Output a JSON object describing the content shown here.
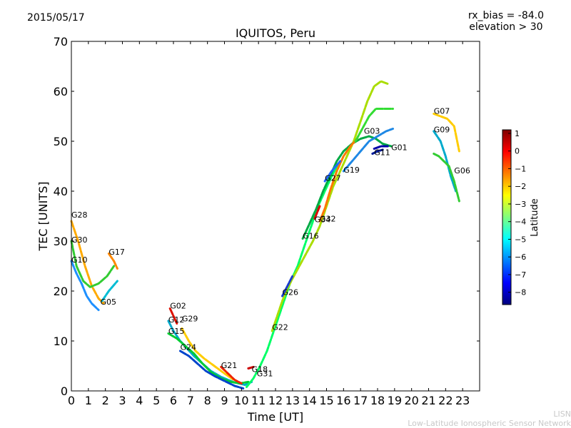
{
  "header": {
    "date": "2015/05/17",
    "title": "IQUITOS, Peru",
    "rx_bias": "rx_bias = -84.0",
    "elevation": "elevation > 30"
  },
  "footer": {
    "line1": "LISN",
    "line2": "Low-Latitude Ionospheric Sensor Network"
  },
  "chart_data": {
    "type": "scatter",
    "xlabel": "Time [UT]",
    "ylabel": "TEC [UNITS]",
    "xlim": [
      0,
      24
    ],
    "ylim": [
      0,
      70
    ],
    "xticks": [
      "0",
      "1",
      "2",
      "3",
      "4",
      "5",
      "6",
      "7",
      "8",
      "9",
      "10",
      "11",
      "12",
      "13",
      "14",
      "15",
      "16",
      "17",
      "18",
      "19",
      "20",
      "21",
      "22",
      "23"
    ],
    "yticks": [
      "0",
      "10",
      "20",
      "30",
      "40",
      "50",
      "60",
      "70"
    ],
    "grid": false,
    "colorbar": {
      "label": "Latitude",
      "range": [
        -8.7,
        1.2
      ],
      "ticks": [
        "1",
        "0",
        "−1",
        "−2",
        "−3",
        "−4",
        "−5",
        "−6",
        "−7",
        "−8"
      ],
      "colormap": [
        "#00007f",
        "#0000ff",
        "#007fff",
        "#00ffff",
        "#7fff7f",
        "#ffff00",
        "#ff7f00",
        "#ff0000",
        "#7f0000"
      ]
    },
    "series": [
      {
        "name": "G28",
        "label_at": [
          0.0,
          34.7
        ],
        "color": "#ffaa00",
        "points": [
          [
            0.0,
            34
          ],
          [
            0.4,
            30
          ],
          [
            0.8,
            25
          ],
          [
            1.2,
            21
          ],
          [
            1.6,
            18.5
          ],
          [
            1.9,
            17.5
          ]
        ]
      },
      {
        "name": "G30",
        "label_at": [
          0.0,
          29.7
        ],
        "color": "#33cc33",
        "points": [
          [
            0.0,
            30
          ],
          [
            0.3,
            25
          ],
          [
            0.7,
            22
          ],
          [
            1.1,
            20.8
          ],
          [
            1.6,
            21.5
          ],
          [
            2.1,
            23
          ],
          [
            2.5,
            25
          ]
        ]
      },
      {
        "name": "G10",
        "label_at": [
          0.0,
          25.7
        ],
        "color": "#1e90ff",
        "points": [
          [
            0.0,
            26
          ],
          [
            0.3,
            23.5
          ],
          [
            0.6,
            21.5
          ],
          [
            0.9,
            19
          ],
          [
            1.2,
            17.5
          ],
          [
            1.6,
            16.2
          ]
        ]
      },
      {
        "name": "G17",
        "label_at": [
          2.2,
          27.3
        ],
        "color": "#ff8800",
        "points": [
          [
            2.2,
            27.5
          ],
          [
            2.5,
            26
          ],
          [
            2.7,
            24.5
          ]
        ]
      },
      {
        "name": "G05",
        "label_at": [
          1.7,
          17.3
        ],
        "color": "#00bcd4",
        "points": [
          [
            1.8,
            18
          ],
          [
            2.2,
            20
          ],
          [
            2.7,
            22
          ]
        ]
      },
      {
        "name": "G02",
        "label_at": [
          5.8,
          16.5
        ],
        "color": "#dd1100",
        "points": [
          [
            5.8,
            16.5
          ],
          [
            6.0,
            15
          ],
          [
            6.2,
            13.5
          ]
        ]
      },
      {
        "name": "G12",
        "label_at": [
          5.7,
          13.7
        ],
        "color": "#00aacc",
        "points": [
          [
            5.7,
            14
          ],
          [
            6.0,
            12
          ],
          [
            6.4,
            10
          ],
          [
            6.8,
            8.5
          ],
          [
            7.2,
            7
          ],
          [
            7.7,
            5.5
          ],
          [
            8.2,
            4
          ],
          [
            8.8,
            2.8
          ],
          [
            9.5,
            1.8
          ],
          [
            10.2,
            1.2
          ],
          [
            10.6,
            1.8
          ]
        ]
      },
      {
        "name": "G29",
        "label_at": [
          6.5,
          13.9
        ],
        "color": "#ffcc00",
        "points": [
          [
            6.5,
            12.5
          ],
          [
            6.9,
            10
          ],
          [
            7.3,
            8
          ],
          [
            7.8,
            6.5
          ],
          [
            8.4,
            5
          ],
          [
            9.0,
            3.5
          ],
          [
            9.5,
            2.3
          ]
        ]
      },
      {
        "name": "G15",
        "label_at": [
          5.7,
          11.4
        ],
        "color": "#00cc33",
        "points": [
          [
            5.7,
            11.5
          ],
          [
            6.2,
            10.5
          ],
          [
            6.7,
            9
          ],
          [
            7.2,
            7.5
          ],
          [
            7.7,
            5.5
          ],
          [
            8.2,
            3.8
          ],
          [
            8.8,
            2.5
          ],
          [
            9.4,
            1.8
          ],
          [
            9.9,
            1.5
          ],
          [
            10.4,
            1.8
          ]
        ]
      },
      {
        "name": "G24",
        "label_at": [
          6.4,
          8.2
        ],
        "color": "#0044cc",
        "points": [
          [
            6.4,
            8
          ],
          [
            6.9,
            7
          ],
          [
            7.4,
            5.5
          ],
          [
            7.9,
            4
          ],
          [
            8.4,
            3
          ],
          [
            9.0,
            2
          ],
          [
            9.6,
            1
          ],
          [
            10.1,
            0.5
          ]
        ]
      },
      {
        "name": "G21",
        "label_at": [
          8.8,
          4.6
        ],
        "color": "#ee2200",
        "points": [
          [
            8.8,
            4.8
          ],
          [
            9.2,
            3.5
          ],
          [
            9.6,
            2.2
          ],
          [
            10.0,
            1.5
          ]
        ]
      },
      {
        "name": "G18",
        "label_at": [
          10.6,
          3.8
        ],
        "color": "#cc0000",
        "points": [
          [
            10.4,
            4.5
          ],
          [
            10.7,
            4.8
          ]
        ]
      },
      {
        "name": "G31",
        "label_at": [
          10.9,
          2.9
        ],
        "color": "#00ff66",
        "points": [
          [
            10.3,
            0.8
          ],
          [
            10.7,
            2.5
          ],
          [
            11.1,
            5
          ],
          [
            11.5,
            8
          ],
          [
            11.8,
            11
          ],
          [
            12.1,
            14
          ],
          [
            12.5,
            18
          ],
          [
            12.9,
            22
          ],
          [
            13.3,
            25
          ],
          [
            13.7,
            29
          ],
          [
            14.1,
            33
          ],
          [
            14.5,
            37
          ],
          [
            14.9,
            40
          ],
          [
            15.3,
            43
          ],
          [
            15.7,
            45.5
          ]
        ]
      },
      {
        "name": "G22",
        "label_at": [
          11.8,
          12.2
        ],
        "color": "#aadd00",
        "points": [
          [
            11.8,
            12
          ],
          [
            12.1,
            15
          ],
          [
            12.4,
            18
          ],
          [
            12.7,
            20.5
          ],
          [
            13.0,
            22.5
          ],
          [
            13.4,
            25
          ],
          [
            13.8,
            27.5
          ],
          [
            14.2,
            30
          ],
          [
            14.6,
            33
          ],
          [
            15.0,
            37
          ],
          [
            15.4,
            41
          ],
          [
            15.8,
            44
          ],
          [
            16.2,
            47
          ],
          [
            16.6,
            50
          ],
          [
            17.0,
            54
          ],
          [
            17.4,
            58
          ],
          [
            17.8,
            61
          ],
          [
            18.2,
            62
          ],
          [
            18.6,
            61.5
          ]
        ]
      },
      {
        "name": "G26",
        "label_at": [
          12.4,
          19.2
        ],
        "color": "#1a3ccc",
        "points": [
          [
            12.4,
            19
          ],
          [
            12.7,
            21
          ],
          [
            13.0,
            23
          ]
        ]
      },
      {
        "name": "G16",
        "label_at": [
          13.6,
          30.5
        ],
        "color": "#00aa44",
        "points": [
          [
            13.6,
            30.5
          ],
          [
            14.0,
            33.5
          ],
          [
            14.4,
            36.5
          ],
          [
            14.8,
            40
          ],
          [
            15.2,
            43
          ],
          [
            15.6,
            46
          ],
          [
            16.0,
            48
          ],
          [
            16.5,
            49.5
          ],
          [
            17.0,
            50.5
          ],
          [
            17.5,
            51
          ],
          [
            17.9,
            50.5
          ],
          [
            18.3,
            49.5
          ],
          [
            18.8,
            49
          ]
        ]
      },
      {
        "name": "G32",
        "label_at": [
          14.6,
          33.9
        ],
        "color": "#ff7700",
        "points": [
          [
            14.6,
            34
          ],
          [
            14.9,
            36.5
          ],
          [
            15.2,
            40
          ],
          [
            15.6,
            44
          ],
          [
            16.0,
            47
          ],
          [
            16.4,
            49
          ],
          [
            16.8,
            50.5
          ]
        ]
      },
      {
        "name": "G34",
        "label_at": [
          14.3,
          33.8
        ],
        "color": "#dd0000",
        "points": [
          [
            14.3,
            34.5
          ],
          [
            14.6,
            37
          ]
        ]
      },
      {
        "name": "G27",
        "label_at": [
          14.9,
          42.1
        ],
        "color": "#2266ff",
        "points": [
          [
            14.9,
            42
          ],
          [
            15.3,
            44
          ],
          [
            15.8,
            46
          ]
        ]
      },
      {
        "name": "G19",
        "label_at": [
          16.0,
          43.7
        ],
        "color": "#1e88e5",
        "points": [
          [
            16.0,
            44
          ],
          [
            16.5,
            46
          ],
          [
            17.0,
            48
          ],
          [
            17.5,
            50
          ],
          [
            18.0,
            51
          ],
          [
            18.5,
            52
          ],
          [
            18.9,
            52.5
          ]
        ]
      },
      {
        "name": "G03",
        "label_at": [
          17.2,
          51.5
        ],
        "color": "#33dd33",
        "points": [
          [
            16.7,
            50
          ],
          [
            17.1,
            52.5
          ],
          [
            17.5,
            55
          ],
          [
            17.9,
            56.5
          ],
          [
            18.4,
            56.5
          ],
          [
            18.9,
            56.5
          ]
        ]
      },
      {
        "name": "G11",
        "label_at": [
          17.8,
          47.2
        ],
        "color": "#001a99",
        "points": [
          [
            17.7,
            47.5
          ],
          [
            18.0,
            48
          ],
          [
            18.3,
            48.3
          ]
        ]
      },
      {
        "name": "G01",
        "label_at": [
          18.8,
          48.2
        ],
        "color": "#0000aa",
        "points": [
          [
            17.8,
            48.5
          ],
          [
            18.2,
            49
          ],
          [
            18.6,
            49
          ]
        ]
      },
      {
        "name": "G07",
        "label_at": [
          21.3,
          55.5
        ],
        "color": "#ffcc00",
        "points": [
          [
            21.3,
            55.5
          ],
          [
            21.7,
            55
          ],
          [
            22.1,
            54.5
          ],
          [
            22.5,
            53
          ],
          [
            22.8,
            48
          ]
        ]
      },
      {
        "name": "G09",
        "label_at": [
          21.3,
          51.8
        ],
        "color": "#00aacc",
        "points": [
          [
            21.3,
            52
          ],
          [
            21.7,
            50
          ],
          [
            22.0,
            47
          ],
          [
            22.3,
            43
          ],
          [
            22.6,
            40
          ]
        ]
      },
      {
        "name": "G06",
        "label_at": [
          22.5,
          43.6
        ],
        "color": "#33cc33",
        "points": [
          [
            21.3,
            47.5
          ],
          [
            21.6,
            47
          ],
          [
            21.9,
            46
          ],
          [
            22.2,
            45
          ],
          [
            22.5,
            42
          ],
          [
            22.8,
            38
          ]
        ]
      }
    ]
  }
}
